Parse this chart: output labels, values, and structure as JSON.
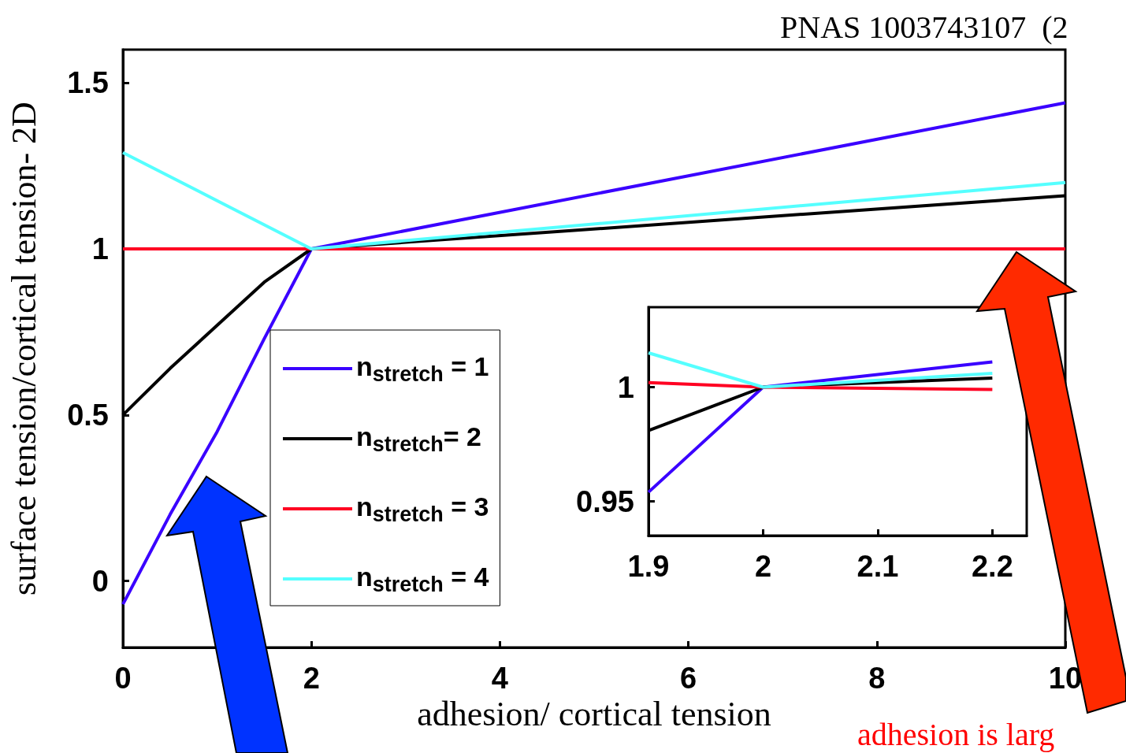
{
  "chart_data": [
    {
      "type": "line",
      "ylabel": "surface tension/cortical tension- 2D",
      "xlabel": "adhesion/ cortical tension",
      "xlim": [
        0,
        10
      ],
      "xticks": [
        0,
        2,
        4,
        6,
        8,
        10
      ],
      "ylim": [
        -0.2,
        1.6
      ],
      "yticks": [
        0,
        0.5,
        1,
        1.5
      ],
      "legend": "bottom left",
      "annotations": [
        "PNAS 1003743107  (2",
        "adhesion is larg"
      ],
      "series": [
        {
          "name": "n$_{stretch}$ = 1",
          "color": "#3a00ff",
          "x": [
            0,
            0.5,
            1,
            1.5,
            2,
            10
          ],
          "values": [
            -0.07,
            0.2,
            0.45,
            0.73,
            1,
            1.44
          ]
        },
        {
          "name": "n$_{stretch}$= 2",
          "color": "#000000",
          "x": [
            0,
            0.5,
            1,
            1.5,
            2,
            10
          ],
          "values": [
            0.5,
            0.64,
            0.77,
            0.9,
            1,
            1.16
          ]
        },
        {
          "name": "n$_{stretch}$ = 3",
          "color": "#ff0022",
          "x": [
            0,
            1.8,
            2,
            10
          ],
          "values": [
            1,
            1,
            1,
            1
          ]
        },
        {
          "name": "n$_{stretch}$ = 4",
          "color": "#55ffff",
          "x": [
            0,
            2,
            10
          ],
          "values": [
            1.29,
            1,
            1.2
          ]
        }
      ]
    },
    {
      "type": "line",
      "xlim": [
        1.9,
        2.23
      ],
      "xticks": [
        1.9,
        2,
        2.1,
        2.2
      ],
      "ylim": [
        0.935,
        1.035
      ],
      "yticks": [
        0.95,
        1
      ],
      "series": [
        {
          "color": "#3a00ff",
          "x": [
            1.9,
            2,
            2.2
          ],
          "values": [
            0.954,
            1,
            1.011
          ]
        },
        {
          "color": "#000000",
          "x": [
            1.9,
            2,
            2.2
          ],
          "values": [
            0.981,
            1,
            1.004
          ]
        },
        {
          "color": "#ff0022",
          "x": [
            1.9,
            2,
            2.2
          ],
          "values": [
            1.002,
            1,
            0.999
          ]
        },
        {
          "color": "#55ffff",
          "x": [
            1.9,
            2,
            2.2
          ],
          "values": [
            1.015,
            1,
            1.006
          ]
        }
      ]
    }
  ]
}
